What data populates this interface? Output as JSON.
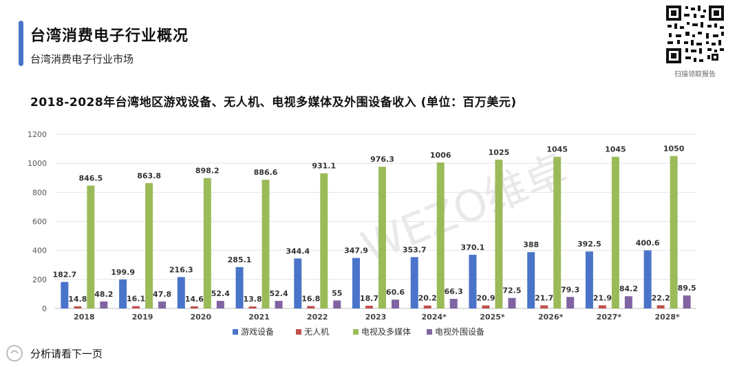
{
  "header": {
    "title": "台湾消费电子行业概况",
    "subtitle": "台湾消费电子行业市场"
  },
  "qr": {
    "caption": "扫描领取报告"
  },
  "footer": {
    "note": "分析请看下一页"
  },
  "colors": {
    "accent": "#4a74c9",
    "game": "#4a74c9",
    "drone": "#c0504d",
    "tv_media": "#9bbb59",
    "tv_peripheral": "#8064a2"
  },
  "chart_data": {
    "type": "bar",
    "title": "2018-2028年台湾地区游戏设备、无人机、电视多媒体及外围设备收入 (单位：百万美元)",
    "categories": [
      "2018",
      "2019",
      "2020",
      "2021",
      "2022",
      "2023",
      "2024*",
      "2025*",
      "2026*",
      "2027*",
      "2028*"
    ],
    "ylim": [
      0,
      1200
    ],
    "yticks": [
      0,
      200,
      400,
      600,
      800,
      1000,
      1200
    ],
    "grid": true,
    "legend_position": "bottom",
    "series": [
      {
        "name": "游戏设备",
        "color": "#4a74c9",
        "values": [
          182.7,
          199.9,
          216.3,
          285.1,
          344.4,
          347.9,
          353.7,
          370.1,
          388,
          392.5,
          400.6
        ]
      },
      {
        "name": "无人机",
        "color": "#c0504d",
        "values": [
          14.8,
          16.1,
          14.6,
          13.8,
          16.8,
          18.7,
          20.2,
          20.9,
          21.7,
          21.9,
          22.2
        ]
      },
      {
        "name": "电视及多媒体",
        "color": "#9bbb59",
        "values": [
          846.5,
          863.8,
          898.2,
          886.6,
          931.1,
          976.3,
          1006,
          1025,
          1045,
          1045,
          1050
        ]
      },
      {
        "name": "电视外围设备",
        "color": "#8064a2",
        "values": [
          48.2,
          47.8,
          52.4,
          52.4,
          55,
          60.6,
          66.3,
          72.5,
          79.3,
          84.2,
          89.5
        ]
      }
    ]
  }
}
